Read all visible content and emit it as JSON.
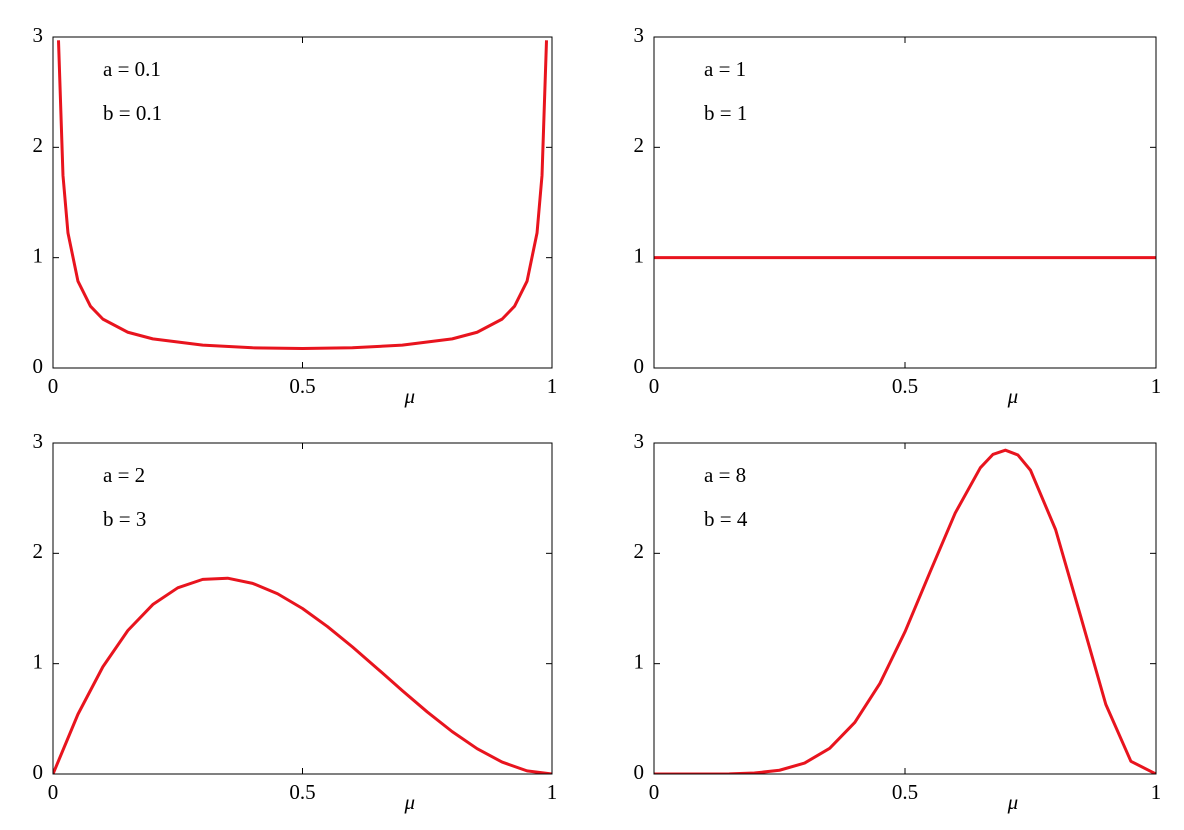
{
  "chart_data": [
    {
      "type": "line",
      "color": "#e8141e",
      "xlabel": "μ",
      "annotations": [
        "a = 0.1",
        "b = 0.1"
      ],
      "xlim": [
        0,
        1
      ],
      "ylim": [
        0,
        3
      ],
      "xticks": [
        0,
        0.5,
        1
      ],
      "yticks": [
        0,
        1,
        2,
        3
      ],
      "x": [
        0.011,
        0.02,
        0.03,
        0.05,
        0.075,
        0.1,
        0.15,
        0.2,
        0.3,
        0.4,
        0.5,
        0.6,
        0.7,
        0.8,
        0.85,
        0.9,
        0.925,
        0.95,
        0.97,
        0.98,
        0.989
      ],
      "values": [
        2.97,
        1.746,
        1.224,
        0.787,
        0.56,
        0.443,
        0.324,
        0.264,
        0.207,
        0.183,
        0.177,
        0.183,
        0.207,
        0.264,
        0.324,
        0.443,
        0.56,
        0.787,
        1.224,
        1.746,
        2.97
      ]
    },
    {
      "type": "line",
      "color": "#e8141e",
      "xlabel": "μ",
      "annotations": [
        "a = 1",
        "b = 1"
      ],
      "xlim": [
        0,
        1
      ],
      "ylim": [
        0,
        3
      ],
      "xticks": [
        0,
        0.5,
        1
      ],
      "yticks": [
        0,
        1,
        2,
        3
      ],
      "x": [
        0,
        1
      ],
      "values": [
        1,
        1
      ]
    },
    {
      "type": "line",
      "color": "#e8141e",
      "xlabel": "μ",
      "annotations": [
        "a = 2",
        "b = 3"
      ],
      "xlim": [
        0,
        1
      ],
      "ylim": [
        0,
        3
      ],
      "xticks": [
        0,
        0.5,
        1
      ],
      "yticks": [
        0,
        1,
        2,
        3
      ],
      "x": [
        0,
        0.05,
        0.1,
        0.15,
        0.2,
        0.25,
        0.3,
        0.35,
        0.4,
        0.45,
        0.5,
        0.55,
        0.6,
        0.65,
        0.7,
        0.75,
        0.8,
        0.85,
        0.9,
        0.95,
        1
      ],
      "values": [
        0,
        0.5415,
        0.972,
        1.3005,
        1.536,
        1.6875,
        1.764,
        1.7745,
        1.728,
        1.6335,
        1.5,
        1.3365,
        1.152,
        0.9555,
        0.756,
        0.5625,
        0.384,
        0.2295,
        0.108,
        0.0285,
        0
      ]
    },
    {
      "type": "line",
      "color": "#e8141e",
      "xlabel": "μ",
      "annotations": [
        "a = 8",
        "b = 4"
      ],
      "xlim": [
        0,
        1
      ],
      "ylim": [
        0,
        3
      ],
      "xticks": [
        0,
        0.5,
        1
      ],
      "yticks": [
        0,
        1,
        2,
        3
      ],
      "x": [
        0,
        0.05,
        0.1,
        0.15,
        0.2,
        0.25,
        0.3,
        0.35,
        0.4,
        0.45,
        0.5,
        0.55,
        0.6,
        0.65,
        0.675,
        0.7,
        0.725,
        0.75,
        0.8,
        0.85,
        0.9,
        0.95,
        1
      ],
      "values": [
        0,
        0,
        0.0001,
        0.0014,
        0.0087,
        0.034,
        0.099,
        0.233,
        0.467,
        0.821,
        1.289,
        1.831,
        2.365,
        2.775,
        2.896,
        2.935,
        2.891,
        2.753,
        2.215,
        1.428,
        0.631,
        0.115,
        0
      ]
    }
  ]
}
